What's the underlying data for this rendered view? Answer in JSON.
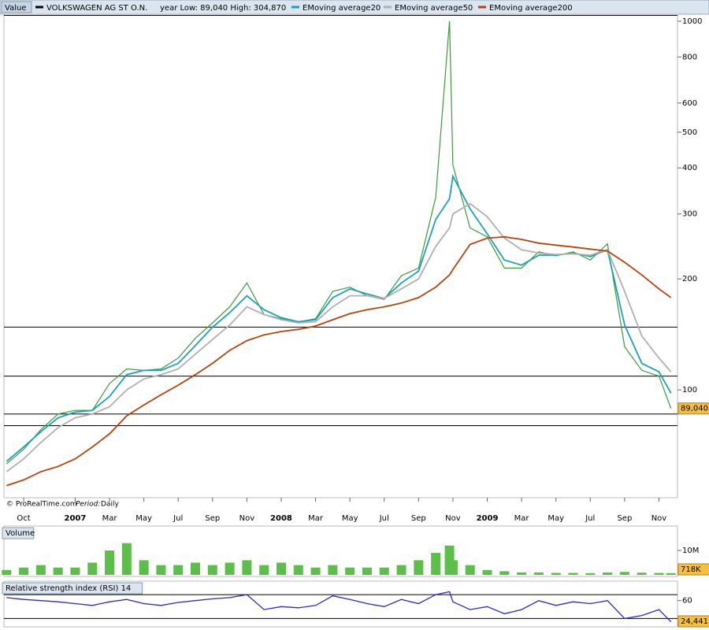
{
  "header": {
    "value_label": "Value",
    "range_text": "year Low: 89,040 High: 304,870",
    "copyright": "© ProRealTime.com",
    "period_label": "Period:",
    "period": "Daily"
  },
  "chart_data": [
    {
      "type": "line",
      "log_scale": true,
      "price_color": "#3c9a3c",
      "x": [
        -1,
        0,
        1,
        2,
        3,
        4,
        5,
        6,
        7,
        8,
        9,
        10,
        11,
        12,
        13,
        14,
        15,
        16,
        17,
        18,
        19,
        20,
        21,
        22,
        23,
        24,
        24.8,
        25,
        26,
        27,
        28,
        29,
        30,
        31,
        32,
        33,
        34,
        35,
        36,
        37,
        37.7
      ],
      "xlim": [
        -1.15,
        38.08
      ],
      "xticks": [
        {
          "value": 0,
          "label": "Oct"
        },
        {
          "value": 3,
          "label": "2007"
        },
        {
          "value": 5,
          "label": "Mar"
        },
        {
          "value": 7,
          "label": "May"
        },
        {
          "value": 9,
          "label": "Jul"
        },
        {
          "value": 11,
          "label": "Sep"
        },
        {
          "value": 13,
          "label": "Nov"
        },
        {
          "value": 15,
          "label": "2008"
        },
        {
          "value": 17,
          "label": "Mar"
        },
        {
          "value": 19,
          "label": "May"
        },
        {
          "value": 21,
          "label": "Jul"
        },
        {
          "value": 23,
          "label": "Sep"
        },
        {
          "value": 25,
          "label": "Nov"
        },
        {
          "value": 27,
          "label": "2009"
        },
        {
          "value": 29,
          "label": "Mar"
        },
        {
          "value": 31,
          "label": "May"
        },
        {
          "value": 33,
          "label": "Jul"
        },
        {
          "value": 35,
          "label": "Sep"
        },
        {
          "value": 37,
          "label": "Nov"
        }
      ],
      "bold_xticks": [
        "2007",
        "2008",
        "2009"
      ],
      "ylim": [
        51,
        1045
      ],
      "yticks": [
        100,
        200,
        300,
        400,
        500,
        600,
        800,
        1000
      ],
      "hlines": [
        148,
        109,
        86,
        80
      ],
      "last_value": {
        "value": 89.04,
        "label": "89,040"
      },
      "series": [
        {
          "name": "VOLKSWAGEN AG ST O.N.",
          "color": "#000000",
          "values": [
            63,
            69,
            78,
            86,
            88,
            88,
            104,
            114,
            113,
            114,
            122,
            138,
            152,
            168,
            195,
            160,
            156,
            153,
            156,
            185,
            190,
            180,
            176,
            204,
            214,
            333,
            1000,
            407,
            275,
            260,
            214,
            214,
            237,
            231,
            237,
            225,
            249,
            131,
            113,
            109,
            89.04
          ]
        },
        {
          "name": "EMoving average20",
          "color": "#1aa3b8",
          "values": [
            64,
            70,
            77,
            84,
            87,
            88,
            96,
            110,
            113,
            113,
            118,
            132,
            148,
            162,
            180,
            165,
            157,
            153,
            155,
            178,
            188,
            182,
            177,
            195,
            210,
            290,
            330,
            380,
            310,
            265,
            225,
            218,
            232,
            232,
            235,
            230,
            240,
            150,
            118,
            112,
            98
          ]
        },
        {
          "name": "EMoving average50",
          "color": "#b0b0b0",
          "values": [
            60,
            65,
            72,
            79,
            84,
            86,
            90,
            100,
            107,
            110,
            114,
            125,
            137,
            150,
            168,
            160,
            155,
            152,
            153,
            168,
            180,
            180,
            177,
            188,
            200,
            245,
            275,
            300,
            320,
            295,
            258,
            240,
            235,
            233,
            234,
            232,
            240,
            185,
            140,
            122,
            112
          ]
        },
        {
          "name": "EMoving average200",
          "color": "#b5440f",
          "values": [
            55,
            57,
            60,
            62,
            65,
            70,
            76,
            85,
            91,
            97,
            103,
            110,
            118,
            128,
            136,
            141,
            144,
            146,
            149,
            155,
            161,
            165,
            168,
            172,
            178,
            190,
            205,
            212,
            248,
            258,
            260,
            256,
            250,
            247,
            244,
            241,
            238,
            222,
            205,
            188,
            178
          ]
        }
      ]
    },
    {
      "type": "bar",
      "title": "Volume",
      "color": "#5cbf4a",
      "x": [
        -1,
        0,
        1,
        2,
        3,
        4,
        5,
        6,
        7,
        8,
        9,
        10,
        11,
        12,
        13,
        14,
        15,
        16,
        17,
        18,
        19,
        20,
        21,
        22,
        23,
        24,
        24.8,
        25,
        26,
        27,
        28,
        29,
        30,
        31,
        32,
        33,
        34,
        35,
        36,
        37,
        37.7
      ],
      "values": [
        2,
        3,
        4,
        3,
        3,
        5,
        10,
        13,
        6,
        4,
        4,
        5,
        4,
        5,
        6,
        4,
        5,
        4,
        3,
        4,
        3,
        3,
        3,
        4,
        6,
        9,
        12,
        6,
        4,
        2,
        1.5,
        1,
        1,
        0.8,
        0.8,
        0.7,
        1,
        1.2,
        0.9,
        0.8,
        0.718
      ],
      "ylim": [
        0,
        20
      ],
      "yticks": [
        {
          "value": 10,
          "label": "10M"
        }
      ],
      "last_value": {
        "value": 0.718,
        "label": "718K"
      }
    },
    {
      "type": "line",
      "title": "Relative strength index (RSI) 14",
      "color": "#2a2ac8",
      "x": [
        -1,
        0,
        1,
        2,
        3,
        4,
        5,
        6,
        7,
        8,
        9,
        10,
        11,
        12,
        13,
        14,
        15,
        16,
        17,
        18,
        19,
        20,
        21,
        22,
        23,
        24,
        24.8,
        25,
        26,
        27,
        28,
        29,
        30,
        31,
        32,
        33,
        34,
        35,
        36,
        37,
        37.7
      ],
      "values": [
        65,
        62,
        60,
        58,
        55,
        52,
        58,
        62,
        55,
        52,
        57,
        60,
        63,
        65,
        70,
        45,
        50,
        48,
        52,
        68,
        62,
        55,
        50,
        62,
        55,
        70,
        75,
        58,
        45,
        50,
        38,
        45,
        60,
        52,
        58,
        55,
        60,
        30,
        35,
        45,
        24.441
      ],
      "ylim": [
        16,
        90
      ],
      "yticks": [
        20,
        60
      ],
      "hlines": [
        30,
        70
      ],
      "last_value": {
        "value": 24.441,
        "label": "24,441"
      }
    }
  ]
}
